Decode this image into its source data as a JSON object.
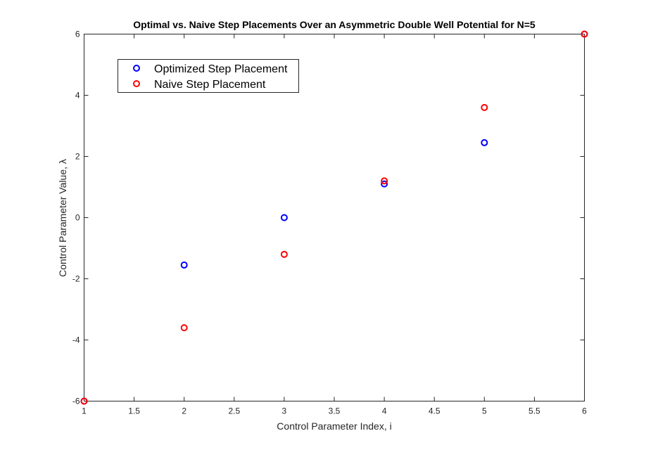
{
  "chart_data": {
    "type": "scatter",
    "title": "Optimal vs. Naive Step Placements Over an Asymmetric Double Well Potential for N=5",
    "xlabel": "Control Parameter Index, i",
    "ylabel": "Control Parameter Value, λ",
    "xlim": [
      1,
      6
    ],
    "ylim": [
      -6,
      6
    ],
    "xticks": [
      1,
      1.5,
      2,
      2.5,
      3,
      3.5,
      4,
      4.5,
      5,
      5.5,
      6
    ],
    "xtick_labels": [
      "1",
      "1.5",
      "2",
      "2.5",
      "3",
      "3.5",
      "4",
      "4.5",
      "5",
      "5.5",
      "6"
    ],
    "yticks": [
      -6,
      -4,
      -2,
      0,
      2,
      4,
      6
    ],
    "ytick_labels": [
      "-6",
      "-4",
      "-2",
      "0",
      "2",
      "4",
      "6"
    ],
    "grid": false,
    "legend_position": "top-left",
    "series": [
      {
        "name": "Optimized Step Placement",
        "color": "#0000ff",
        "marker": "circle-open",
        "x": [
          1,
          2,
          3,
          4,
          5,
          6
        ],
        "y": [
          -6,
          -1.55,
          0.0,
          1.1,
          2.45,
          6
        ]
      },
      {
        "name": "Naive Step Placement",
        "color": "#ff0000",
        "marker": "circle-open",
        "x": [
          1,
          2,
          3,
          4,
          5,
          6
        ],
        "y": [
          -6,
          -3.6,
          -1.2,
          1.2,
          3.6,
          6
        ]
      }
    ]
  }
}
